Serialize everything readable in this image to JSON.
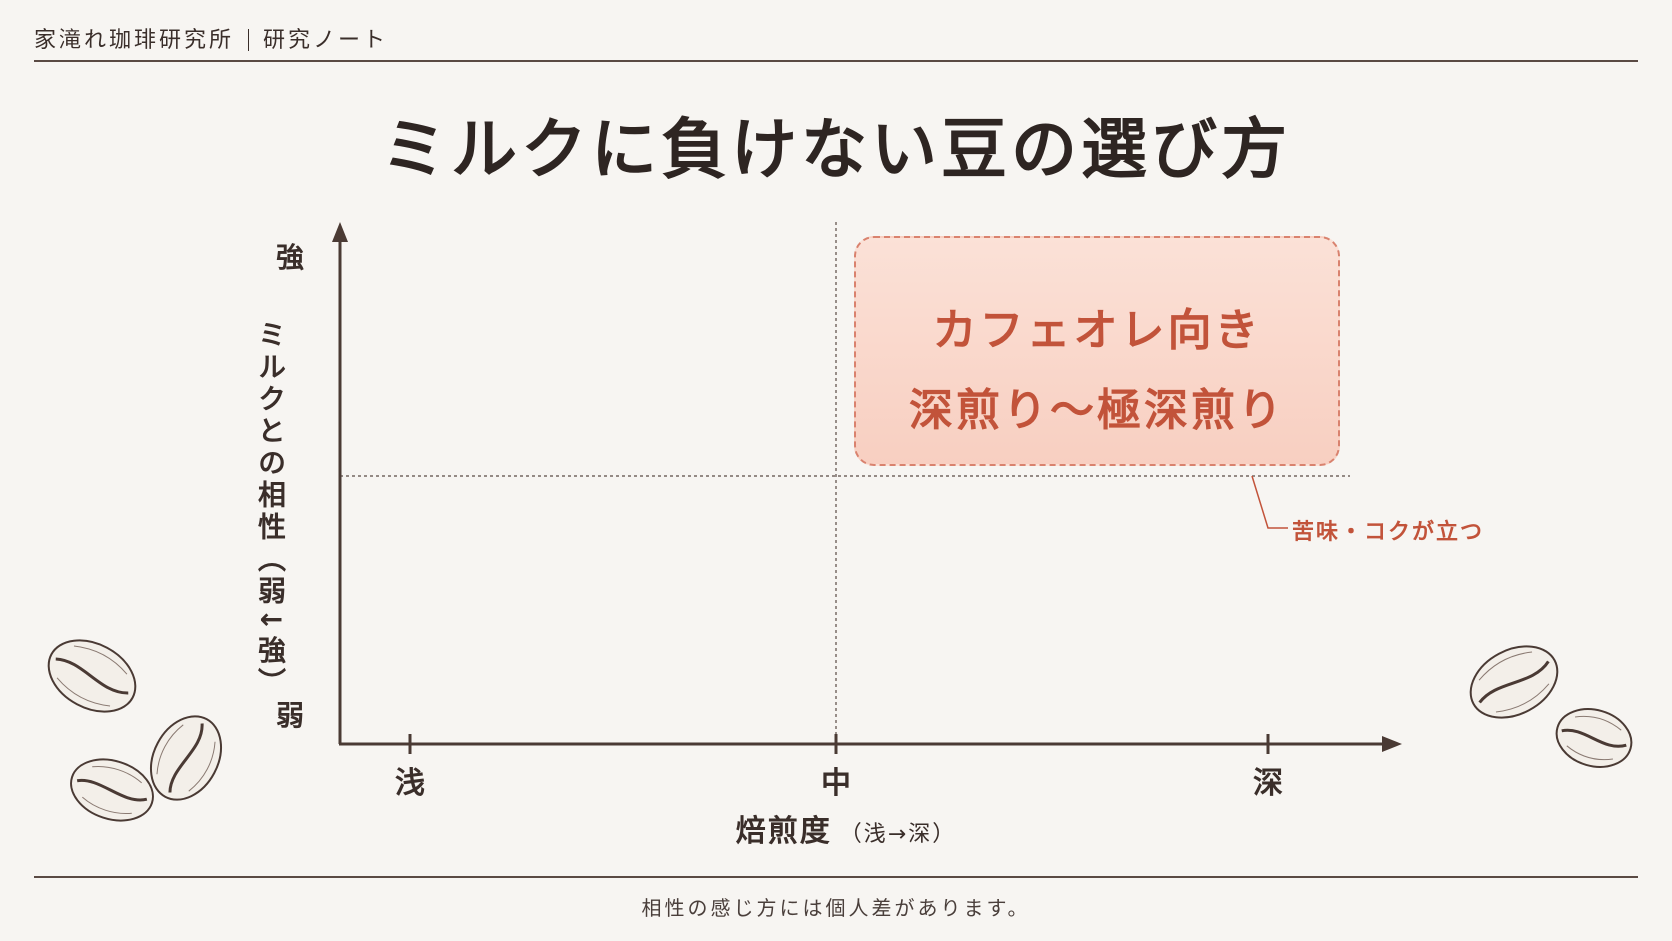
{
  "header": {
    "brand": "家滝れ珈琲研究所",
    "section": "研究ノート"
  },
  "title": "ミルクに負けない豆の選び方",
  "chart_data": {
    "type": "quadrant",
    "y_axis": {
      "title": "ミルクとの相性（弱↓強）",
      "low_label": "弱",
      "high_label": "強"
    },
    "x_axis": {
      "title": "焙煎度",
      "title_suffix": "（浅→深）",
      "ticks": [
        "浅",
        "中",
        "深"
      ]
    },
    "highlight": {
      "quadrant": "top-right",
      "line1": "カフェオレ向き",
      "line2": "深煎り〜極深煎り",
      "fill_color": "#f9d6c9",
      "border_color": "#d9826e",
      "text_color": "#c2533a"
    },
    "annotation": "苦味・コクが立つ"
  },
  "footnote": "相性の感じ方には個人差があります。",
  "colors": {
    "background": "#f7f5f2",
    "ink": "#3a2e2a",
    "accent": "#c2533a"
  },
  "decorations": [
    "coffee-bean-icon",
    "coffee-bean-icon",
    "coffee-bean-icon",
    "coffee-bean-icon",
    "coffee-bean-icon"
  ]
}
